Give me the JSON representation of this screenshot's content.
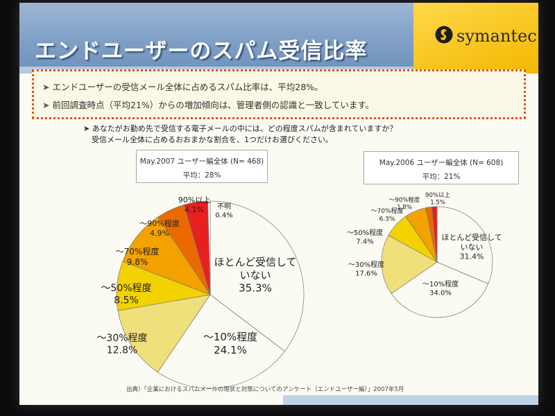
{
  "title": "エンドユーザーのスパム受信比率",
  "logo": {
    "text": "symantec."
  },
  "summary": [
    "エンドユーザーの受信メール全体に占めるスパム比率は、平均28%。",
    "前回調査時点（平均21%）からの増加傾向は、管理者側の認識と一致しています。"
  ],
  "question": [
    "あなたがお勤め先で受信する電子メールの中には、どの程度スパムが含まれていますか？",
    "受信メール全体に占めるおおまかな割合を、1つだけお選びください。"
  ],
  "source": "出典）「企業におけるスパムメールの現状と対策についてのアンケート（エンドユーザー編）」2007年5月",
  "colors": {
    "header_band": "#7f9fc6",
    "logo_yellow": "#f7c817",
    "summary_border": "#e0531a",
    "slice_none": "#f4f2ef",
    "slice_10": "#d4d8e4",
    "slice_30": "#f0e07c",
    "slice_50": "#f2d200",
    "slice_70": "#f3a200",
    "slice_90": "#ea6a00",
    "slice_90plus": "#e81f1f",
    "slice_unknown": "#fbfbfb"
  },
  "chart_data": [
    {
      "type": "pie",
      "header": "May.2007 ユーザー編全体 (N= 468)",
      "average": "平均：28%",
      "categories": [
        "ほとんど受信していない",
        "～10%程度",
        "～30%程度",
        "～50%程度",
        "～70%程度",
        "～90%程度",
        "90%以上",
        "不明"
      ],
      "values": [
        35.3,
        24.1,
        12.8,
        8.5,
        9.8,
        4.9,
        4.1,
        0.4
      ],
      "labels": [
        [
          "ほとんど受信して",
          "いない",
          "35.3%"
        ],
        [
          "～10%程度",
          "24.1%"
        ],
        [
          "～30%程度",
          "12.8%"
        ],
        [
          "～50%程度",
          "8.5%"
        ],
        [
          "～70%程度",
          "9.8%"
        ],
        [
          "～90%程度",
          "4.9%"
        ],
        [
          "90%以上",
          "4.1%"
        ],
        [
          "不明",
          "0.4%"
        ]
      ]
    },
    {
      "type": "pie",
      "header": "May.2006 ユーザー編全体 (N= 608)",
      "average": "平均：21%",
      "categories": [
        "ほとんど受信していない",
        "～10%程度",
        "～30%程度",
        "～50%程度",
        "～70%程度",
        "～90%程度",
        "90%以上"
      ],
      "values": [
        31.4,
        34.0,
        17.6,
        7.4,
        6.3,
        1.8,
        1.5
      ],
      "labels": [
        [
          "ほとんど受信して",
          "いない",
          "31.4%"
        ],
        [
          "～10%程度",
          "34.0%"
        ],
        [
          "～30%程度",
          "17.6%"
        ],
        [
          "～50%程度",
          "7.4%"
        ],
        [
          "～70%程度",
          "6.3%"
        ],
        [
          "～90%程度",
          "1.8%"
        ],
        [
          "90%以上",
          "1.5%"
        ]
      ]
    }
  ]
}
